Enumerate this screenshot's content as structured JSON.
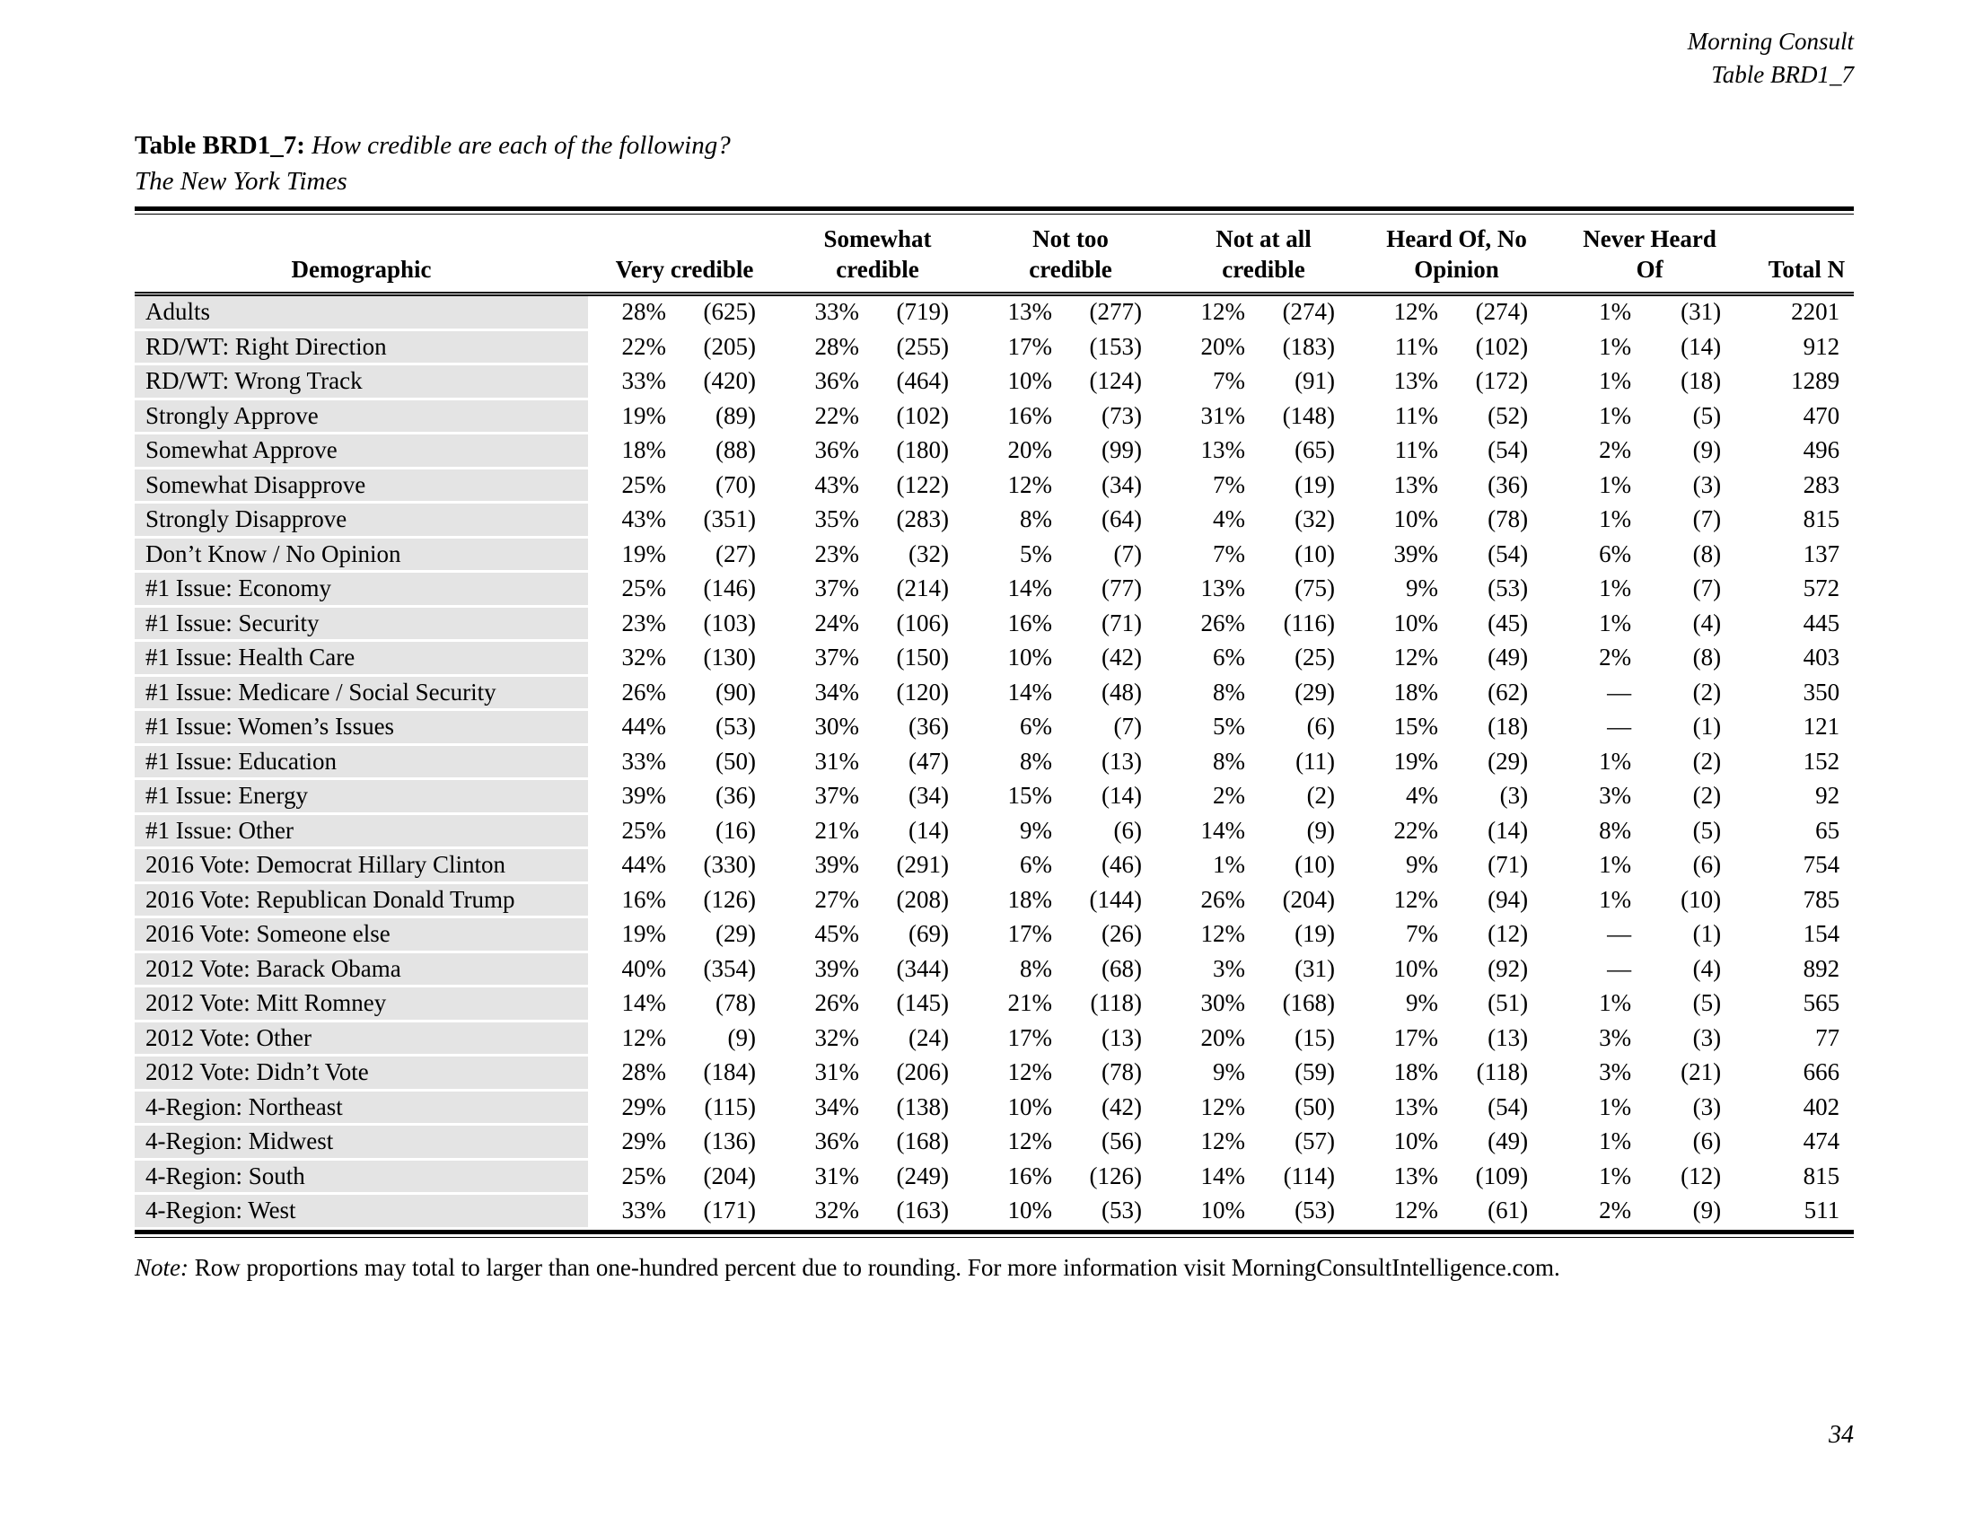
{
  "meta": {
    "brand": "Morning Consult",
    "table_ref": "Table BRD1_7"
  },
  "title": {
    "label": "Table BRD1_7:",
    "question": "How credible are each of the following?",
    "subject": "The New York Times"
  },
  "table": {
    "header": {
      "demographic": "Demographic",
      "categories": [
        {
          "line1": "",
          "line2": "Very credible"
        },
        {
          "line1": "Somewhat",
          "line2": "credible"
        },
        {
          "line1": "Not too",
          "line2": "credible"
        },
        {
          "line1": "Not at all",
          "line2": "credible"
        },
        {
          "line1": "Heard Of, No",
          "line2": "Opinion"
        },
        {
          "line1": "Never Heard",
          "line2": "Of"
        }
      ],
      "total": "Total N"
    },
    "rows": [
      {
        "label": "Adults",
        "cells": [
          "28%",
          "(625)",
          "33%",
          "(719)",
          "13%",
          "(277)",
          "12%",
          "(274)",
          "12%",
          "(274)",
          "1%",
          "(31)"
        ],
        "total": "2201"
      },
      {
        "label": "RD/WT: Right Direction",
        "cells": [
          "22%",
          "(205)",
          "28%",
          "(255)",
          "17%",
          "(153)",
          "20%",
          "(183)",
          "11%",
          "(102)",
          "1%",
          "(14)"
        ],
        "total": "912"
      },
      {
        "label": "RD/WT: Wrong Track",
        "cells": [
          "33%",
          "(420)",
          "36%",
          "(464)",
          "10%",
          "(124)",
          "7%",
          "(91)",
          "13%",
          "(172)",
          "1%",
          "(18)"
        ],
        "total": "1289"
      },
      {
        "label": "Strongly Approve",
        "cells": [
          "19%",
          "(89)",
          "22%",
          "(102)",
          "16%",
          "(73)",
          "31%",
          "(148)",
          "11%",
          "(52)",
          "1%",
          "(5)"
        ],
        "total": "470"
      },
      {
        "label": "Somewhat Approve",
        "cells": [
          "18%",
          "(88)",
          "36%",
          "(180)",
          "20%",
          "(99)",
          "13%",
          "(65)",
          "11%",
          "(54)",
          "2%",
          "(9)"
        ],
        "total": "496"
      },
      {
        "label": "Somewhat Disapprove",
        "cells": [
          "25%",
          "(70)",
          "43%",
          "(122)",
          "12%",
          "(34)",
          "7%",
          "(19)",
          "13%",
          "(36)",
          "1%",
          "(3)"
        ],
        "total": "283"
      },
      {
        "label": "Strongly Disapprove",
        "cells": [
          "43%",
          "(351)",
          "35%",
          "(283)",
          "8%",
          "(64)",
          "4%",
          "(32)",
          "10%",
          "(78)",
          "1%",
          "(7)"
        ],
        "total": "815"
      },
      {
        "label": "Don’t Know / No Opinion",
        "cells": [
          "19%",
          "(27)",
          "23%",
          "(32)",
          "5%",
          "(7)",
          "7%",
          "(10)",
          "39%",
          "(54)",
          "6%",
          "(8)"
        ],
        "total": "137"
      },
      {
        "label": "#1 Issue: Economy",
        "cells": [
          "25%",
          "(146)",
          "37%",
          "(214)",
          "14%",
          "(77)",
          "13%",
          "(75)",
          "9%",
          "(53)",
          "1%",
          "(7)"
        ],
        "total": "572"
      },
      {
        "label": "#1 Issue: Security",
        "cells": [
          "23%",
          "(103)",
          "24%",
          "(106)",
          "16%",
          "(71)",
          "26%",
          "(116)",
          "10%",
          "(45)",
          "1%",
          "(4)"
        ],
        "total": "445"
      },
      {
        "label": "#1 Issue: Health Care",
        "cells": [
          "32%",
          "(130)",
          "37%",
          "(150)",
          "10%",
          "(42)",
          "6%",
          "(25)",
          "12%",
          "(49)",
          "2%",
          "(8)"
        ],
        "total": "403"
      },
      {
        "label": "#1 Issue: Medicare / Social Security",
        "cells": [
          "26%",
          "(90)",
          "34%",
          "(120)",
          "14%",
          "(48)",
          "8%",
          "(29)",
          "18%",
          "(62)",
          "—",
          "(2)"
        ],
        "total": "350"
      },
      {
        "label": "#1 Issue: Women’s Issues",
        "cells": [
          "44%",
          "(53)",
          "30%",
          "(36)",
          "6%",
          "(7)",
          "5%",
          "(6)",
          "15%",
          "(18)",
          "—",
          "(1)"
        ],
        "total": "121"
      },
      {
        "label": "#1 Issue: Education",
        "cells": [
          "33%",
          "(50)",
          "31%",
          "(47)",
          "8%",
          "(13)",
          "8%",
          "(11)",
          "19%",
          "(29)",
          "1%",
          "(2)"
        ],
        "total": "152"
      },
      {
        "label": "#1 Issue: Energy",
        "cells": [
          "39%",
          "(36)",
          "37%",
          "(34)",
          "15%",
          "(14)",
          "2%",
          "(2)",
          "4%",
          "(3)",
          "3%",
          "(2)"
        ],
        "total": "92"
      },
      {
        "label": "#1 Issue: Other",
        "cells": [
          "25%",
          "(16)",
          "21%",
          "(14)",
          "9%",
          "(6)",
          "14%",
          "(9)",
          "22%",
          "(14)",
          "8%",
          "(5)"
        ],
        "total": "65"
      },
      {
        "label": "2016 Vote: Democrat Hillary Clinton",
        "cells": [
          "44%",
          "(330)",
          "39%",
          "(291)",
          "6%",
          "(46)",
          "1%",
          "(10)",
          "9%",
          "(71)",
          "1%",
          "(6)"
        ],
        "total": "754"
      },
      {
        "label": "2016 Vote: Republican Donald Trump",
        "cells": [
          "16%",
          "(126)",
          "27%",
          "(208)",
          "18%",
          "(144)",
          "26%",
          "(204)",
          "12%",
          "(94)",
          "1%",
          "(10)"
        ],
        "total": "785"
      },
      {
        "label": "2016 Vote: Someone else",
        "cells": [
          "19%",
          "(29)",
          "45%",
          "(69)",
          "17%",
          "(26)",
          "12%",
          "(19)",
          "7%",
          "(12)",
          "—",
          "(1)"
        ],
        "total": "154"
      },
      {
        "label": "2012 Vote: Barack Obama",
        "cells": [
          "40%",
          "(354)",
          "39%",
          "(344)",
          "8%",
          "(68)",
          "3%",
          "(31)",
          "10%",
          "(92)",
          "—",
          "(4)"
        ],
        "total": "892"
      },
      {
        "label": "2012 Vote: Mitt Romney",
        "cells": [
          "14%",
          "(78)",
          "26%",
          "(145)",
          "21%",
          "(118)",
          "30%",
          "(168)",
          "9%",
          "(51)",
          "1%",
          "(5)"
        ],
        "total": "565"
      },
      {
        "label": "2012 Vote: Other",
        "cells": [
          "12%",
          "(9)",
          "32%",
          "(24)",
          "17%",
          "(13)",
          "20%",
          "(15)",
          "17%",
          "(13)",
          "3%",
          "(3)"
        ],
        "total": "77"
      },
      {
        "label": "2012 Vote: Didn’t Vote",
        "cells": [
          "28%",
          "(184)",
          "31%",
          "(206)",
          "12%",
          "(78)",
          "9%",
          "(59)",
          "18%",
          "(118)",
          "3%",
          "(21)"
        ],
        "total": "666"
      },
      {
        "label": "4-Region: Northeast",
        "cells": [
          "29%",
          "(115)",
          "34%",
          "(138)",
          "10%",
          "(42)",
          "12%",
          "(50)",
          "13%",
          "(54)",
          "1%",
          "(3)"
        ],
        "total": "402"
      },
      {
        "label": "4-Region: Midwest",
        "cells": [
          "29%",
          "(136)",
          "36%",
          "(168)",
          "12%",
          "(56)",
          "12%",
          "(57)",
          "10%",
          "(49)",
          "1%",
          "(6)"
        ],
        "total": "474"
      },
      {
        "label": "4-Region: South",
        "cells": [
          "25%",
          "(204)",
          "31%",
          "(249)",
          "16%",
          "(126)",
          "14%",
          "(114)",
          "13%",
          "(109)",
          "1%",
          "(12)"
        ],
        "total": "815"
      },
      {
        "label": "4-Region: West",
        "cells": [
          "33%",
          "(171)",
          "32%",
          "(163)",
          "10%",
          "(53)",
          "10%",
          "(53)",
          "12%",
          "(61)",
          "2%",
          "(9)"
        ],
        "total": "511"
      }
    ]
  },
  "note": {
    "label": "Note:",
    "text": "Row proportions may total to larger than one-hundred percent due to rounding. For more information visit MorningConsultIntelligence.com."
  },
  "page_number": "34"
}
